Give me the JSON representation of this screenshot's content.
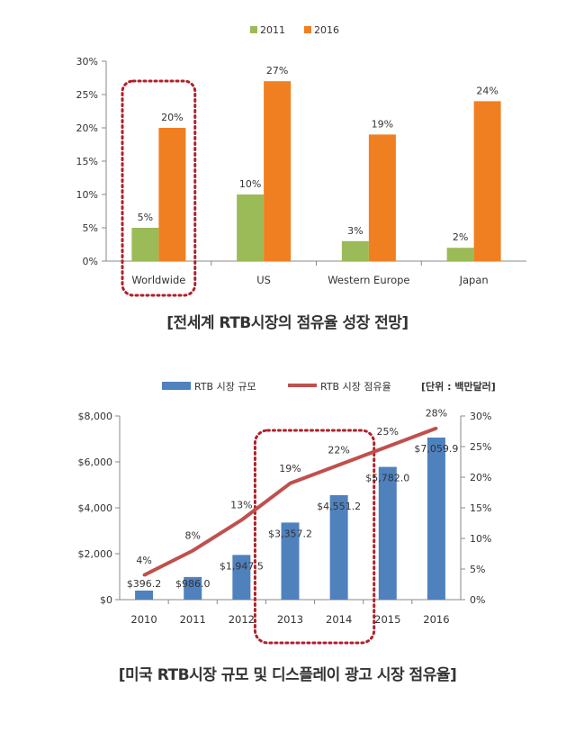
{
  "chart_data": [
    {
      "type": "bar",
      "categories": [
        "Worldwide",
        "US",
        "Western Europe",
        "Japan"
      ],
      "series": [
        {
          "name": "2011",
          "values": [
            5,
            10,
            3,
            2
          ],
          "labels": [
            "5%",
            "10%",
            "3%",
            "2%"
          ],
          "color": "#9BBB59"
        },
        {
          "name": "2016",
          "values": [
            20,
            27,
            19,
            24
          ],
          "labels": [
            "20%",
            "27%",
            "19%",
            "24%"
          ],
          "color": "#F07F22"
        }
      ],
      "yticks": [
        "0%",
        "5%",
        "10%",
        "15%",
        "20%",
        "25%",
        "30%"
      ],
      "ylim": [
        0,
        30
      ],
      "highlight_category": "Worldwide",
      "legend": "top-center",
      "grid": false,
      "caption": "[전세계 RTB시장의 점유율 성장 전망]"
    },
    {
      "type": "bar+line",
      "categories": [
        "2010",
        "2011",
        "2012",
        "2013",
        "2014",
        "2015",
        "2016"
      ],
      "series": [
        {
          "name": "RTB 시장 규모",
          "type": "bar",
          "axis": "left",
          "values": [
            396.2,
            986.0,
            1947.5,
            3357.2,
            4551.2,
            5782.0,
            7059.9
          ],
          "labels": [
            "$396.2",
            "$986.0",
            "$1,947.5",
            "$3,357.2",
            "$4,551.2",
            "$5,782.0",
            "$7,059.9"
          ],
          "color": "#4F81BD"
        },
        {
          "name": "RTB 시장 점유율",
          "type": "line",
          "axis": "right",
          "values": [
            4,
            8,
            13,
            19,
            22,
            25,
            28
          ],
          "labels": [
            "4%",
            "8%",
            "13%",
            "19%",
            "22%",
            "25%",
            "28%"
          ],
          "color": "#C0504D"
        }
      ],
      "unit_note": "[단위 : 백만달러]",
      "yticks_left": [
        "$0",
        "$2,000",
        "$4,000",
        "$6,000",
        "$8,000"
      ],
      "ylim_left": [
        0,
        8000
      ],
      "yticks_right": [
        "0%",
        "5%",
        "10%",
        "15%",
        "20%",
        "25%",
        "30%"
      ],
      "ylim_right": [
        0,
        30
      ],
      "highlight_categories": [
        "2013",
        "2014"
      ],
      "legend": "top-right",
      "grid": false,
      "caption": "[미국 RTB시장 규모 및 디스플레이 광고 시장 점유율]"
    }
  ]
}
